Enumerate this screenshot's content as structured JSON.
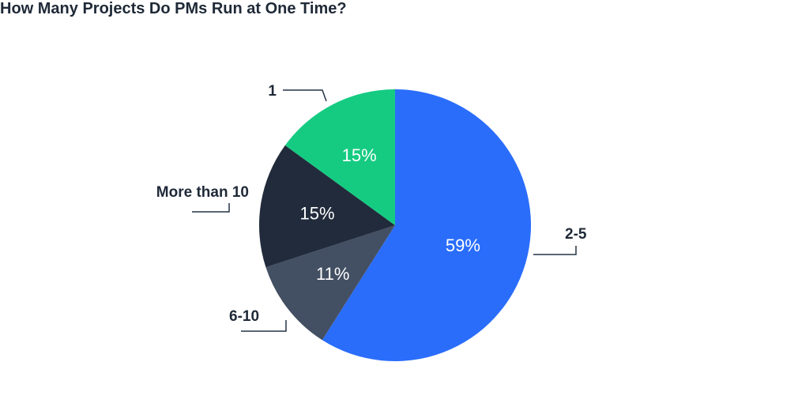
{
  "chart_data": {
    "type": "pie",
    "title": "How Many Projects Do PMs Run at One Time?",
    "slices": [
      {
        "label": "2-5",
        "value": 59,
        "value_label": "59%",
        "color": "#2a6dfb"
      },
      {
        "label": "6-10",
        "value": 11,
        "value_label": "11%",
        "color": "#434f62"
      },
      {
        "label": "More than 10",
        "value": 15,
        "value_label": "15%",
        "color": "#212b3b"
      },
      {
        "label": "1",
        "value": 15,
        "value_label": "15%",
        "color": "#15cb82"
      }
    ],
    "start_angle_deg": 0,
    "direction": "clockwise",
    "legend": "none"
  }
}
